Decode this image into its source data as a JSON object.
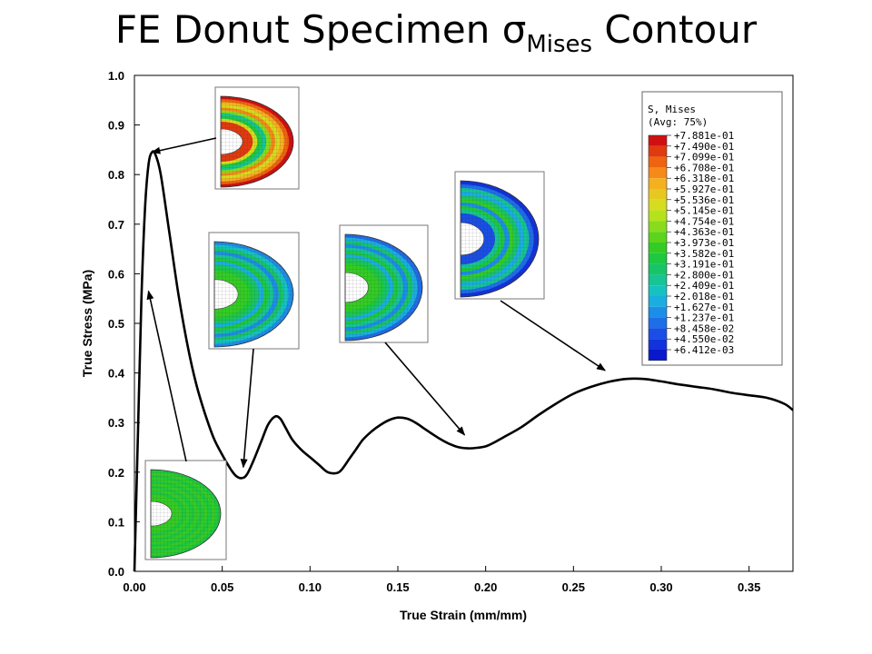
{
  "title": {
    "prefix": "FE Donut Specimen ",
    "symbol": "σ",
    "subscript": "Mises",
    "suffix": " Contour"
  },
  "chart_data": {
    "type": "line",
    "xlabel": "True Strain (mm/mm)",
    "ylabel": "True Stress (MPa)",
    "xlim": [
      0.0,
      0.375
    ],
    "ylim": [
      0.0,
      1.0
    ],
    "xticks": [
      "0.00",
      "0.05",
      "0.10",
      "0.15",
      "0.20",
      "0.25",
      "0.30",
      "0.35"
    ],
    "yticks": [
      "0.0",
      "0.1",
      "0.2",
      "0.3",
      "0.4",
      "0.5",
      "0.6",
      "0.7",
      "0.8",
      "0.9",
      "1.0"
    ],
    "grid": false,
    "series": [
      {
        "x": [
          0.0,
          0.002,
          0.004,
          0.006,
          0.008,
          0.01,
          0.012,
          0.015,
          0.02,
          0.025,
          0.03,
          0.035,
          0.04,
          0.045,
          0.05,
          0.055,
          0.058,
          0.061,
          0.064,
          0.068,
          0.072,
          0.076,
          0.08,
          0.083,
          0.086,
          0.09,
          0.095,
          0.1,
          0.105,
          0.11,
          0.115,
          0.118,
          0.122,
          0.126,
          0.13,
          0.135,
          0.14,
          0.145,
          0.15,
          0.155,
          0.16,
          0.165,
          0.17,
          0.175,
          0.18,
          0.185,
          0.19,
          0.195,
          0.2,
          0.205,
          0.21,
          0.22,
          0.23,
          0.24,
          0.25,
          0.26,
          0.27,
          0.28,
          0.29,
          0.3,
          0.31,
          0.32,
          0.33,
          0.34,
          0.35,
          0.36,
          0.37,
          0.375
        ],
        "y": [
          0.0,
          0.28,
          0.55,
          0.73,
          0.82,
          0.845,
          0.84,
          0.8,
          0.68,
          0.56,
          0.46,
          0.38,
          0.32,
          0.27,
          0.235,
          0.205,
          0.192,
          0.188,
          0.195,
          0.225,
          0.26,
          0.295,
          0.312,
          0.308,
          0.29,
          0.265,
          0.245,
          0.23,
          0.215,
          0.2,
          0.198,
          0.205,
          0.225,
          0.245,
          0.265,
          0.282,
          0.295,
          0.305,
          0.31,
          0.308,
          0.3,
          0.288,
          0.276,
          0.265,
          0.256,
          0.25,
          0.248,
          0.249,
          0.252,
          0.26,
          0.27,
          0.29,
          0.315,
          0.338,
          0.358,
          0.372,
          0.382,
          0.388,
          0.388,
          0.383,
          0.377,
          0.372,
          0.367,
          0.36,
          0.355,
          0.35,
          0.338,
          0.325
        ]
      }
    ]
  },
  "legend": {
    "title_line1": "S, Mises",
    "title_line2": "(Avg: 75%)",
    "labels": [
      "+7.881e-01",
      "+7.490e-01",
      "+7.099e-01",
      "+6.708e-01",
      "+6.318e-01",
      "+5.927e-01",
      "+5.536e-01",
      "+5.145e-01",
      "+4.754e-01",
      "+4.363e-01",
      "+3.973e-01",
      "+3.582e-01",
      "+3.191e-01",
      "+2.800e-01",
      "+2.409e-01",
      "+2.018e-01",
      "+1.627e-01",
      "+1.237e-01",
      "+8.458e-02",
      "+4.550e-02",
      "+6.412e-03"
    ],
    "colors": [
      "#d01010",
      "#e03a10",
      "#ee6410",
      "#f58a18",
      "#f5b020",
      "#e8c820",
      "#d6dc1e",
      "#b4e21c",
      "#88dc1c",
      "#5cd41c",
      "#34cc24",
      "#1ec840",
      "#18c468",
      "#16c494",
      "#16c2c0",
      "#1aaee0",
      "#1c8ee8",
      "#1e6ee8",
      "#1a4ee4",
      "#1232dc",
      "#0a18cc"
    ]
  },
  "contour_insets": [
    {
      "state": "peak",
      "points_to_x": 0.01,
      "points_to_y": 0.845
    },
    {
      "state": "first-min",
      "points_to_x": 0.062,
      "points_to_y": 0.21
    },
    {
      "state": "second-min",
      "points_to_x": 0.188,
      "points_to_y": 0.275
    },
    {
      "state": "plateau",
      "points_to_x": 0.268,
      "points_to_y": 0.405
    },
    {
      "state": "initial",
      "points_to_x": 0.008,
      "points_to_y": 0.565
    }
  ]
}
